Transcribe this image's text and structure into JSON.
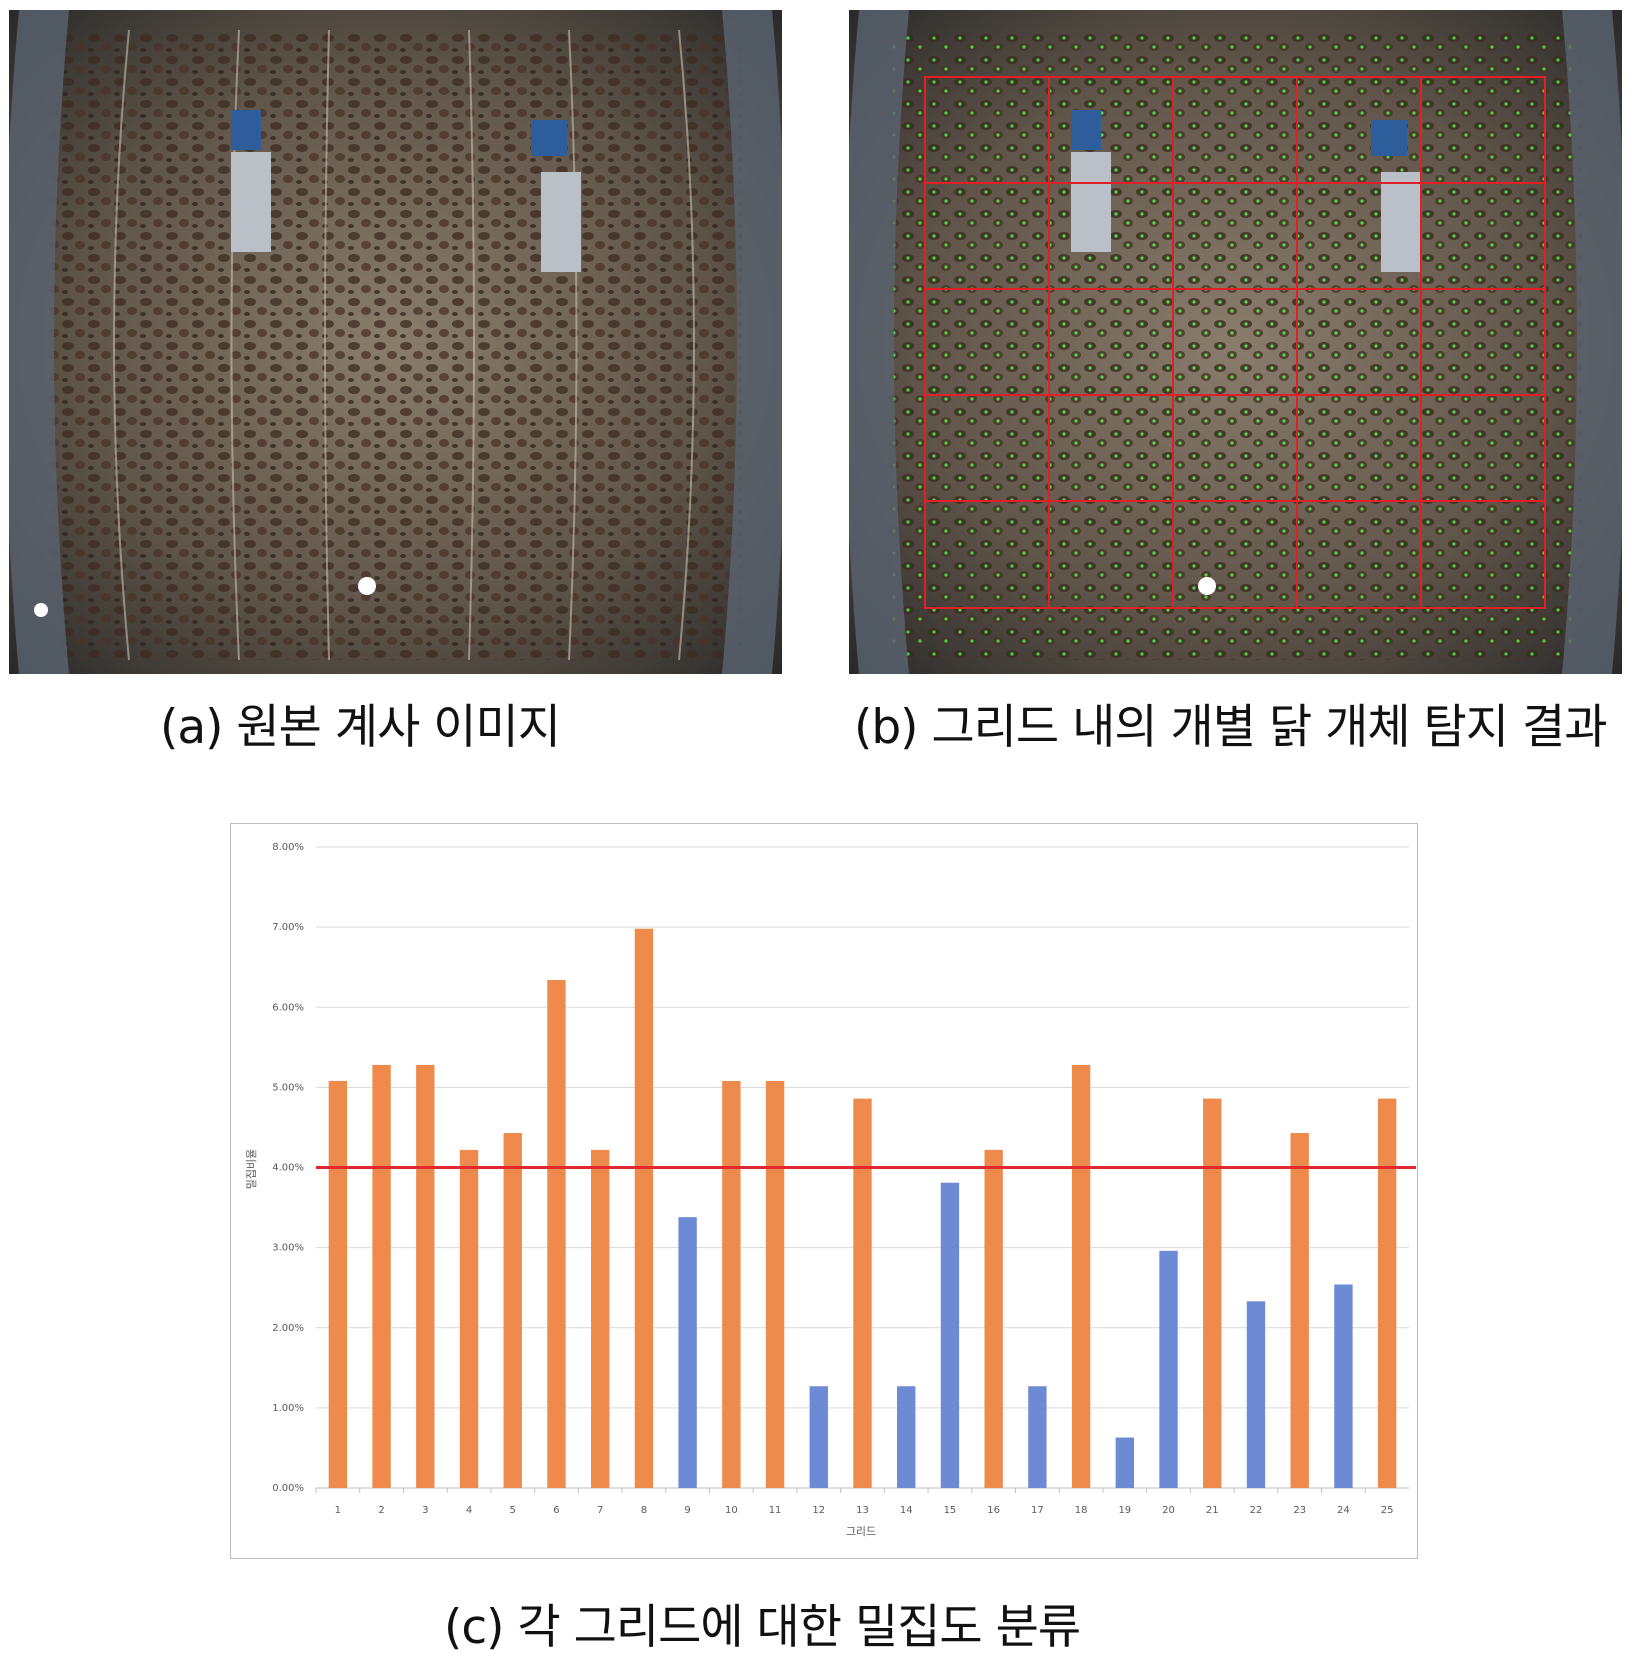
{
  "captions": {
    "a": "(a)  원본  계사  이미지",
    "b": "(b)  그리드 내의 개별 닭 개체 탐지 결과",
    "c": "(c)  각  그리드에  대한  밀집도  분류"
  },
  "colors": {
    "orange": "#ED8A4C",
    "blue": "#6D8BD4",
    "threshold": "#E0282E",
    "grid_overlay": "#E11F26",
    "detection": "#3CFF3C"
  },
  "chart_data": {
    "type": "bar",
    "title": "",
    "xlabel": "그리드",
    "ylabel": "밀집비율",
    "categories": [
      "1",
      "2",
      "3",
      "4",
      "5",
      "6",
      "7",
      "8",
      "9",
      "10",
      "11",
      "12",
      "13",
      "14",
      "15",
      "16",
      "17",
      "18",
      "19",
      "20",
      "21",
      "22",
      "23",
      "24",
      "25"
    ],
    "values": [
      5.08,
      5.28,
      5.28,
      4.22,
      4.43,
      6.34,
      4.22,
      6.98,
      3.38,
      5.08,
      5.08,
      1.27,
      4.86,
      1.27,
      3.81,
      4.22,
      1.27,
      5.28,
      0.63,
      2.96,
      4.86,
      2.33,
      4.43,
      2.54,
      4.86
    ],
    "ylim": [
      0,
      8
    ],
    "yticks": [
      "0.00%",
      "1.00%",
      "2.00%",
      "3.00%",
      "4.00%",
      "5.00%",
      "6.00%",
      "7.00%",
      "8.00%"
    ],
    "threshold": 4.0,
    "grid": true,
    "legend": "none"
  }
}
